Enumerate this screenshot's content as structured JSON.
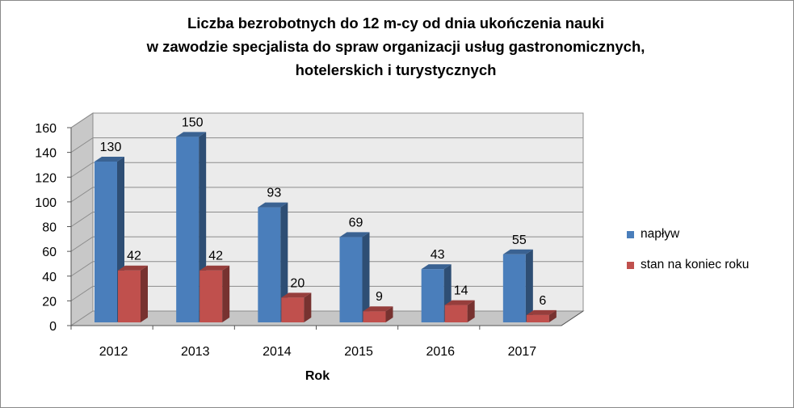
{
  "chart_data": {
    "type": "bar",
    "title_lines": [
      "Liczba bezrobotnych do 12 m-cy od dnia ukończenia nauki",
      "w zawodzie  specjalista do spraw organizacji usług gastronomicznych,",
      "hotelerskich i turystycznych"
    ],
    "xlabel": "Rok",
    "ylabel": "",
    "categories": [
      "2012",
      "2013",
      "2014",
      "2015",
      "2016",
      "2017"
    ],
    "series": [
      {
        "name": "napływ",
        "values": [
          130,
          150,
          93,
          69,
          43,
          55
        ],
        "color": "#4a7ebb"
      },
      {
        "name": "stan na koniec roku",
        "values": [
          42,
          42,
          20,
          9,
          14,
          6
        ],
        "color": "#c0504d"
      }
    ],
    "ylim": [
      0,
      160
    ],
    "yticks": [
      "0",
      "20",
      "40",
      "60",
      "80",
      "100",
      "120",
      "140",
      "160"
    ],
    "grid": true,
    "legend_position": "right",
    "three_d": true
  }
}
